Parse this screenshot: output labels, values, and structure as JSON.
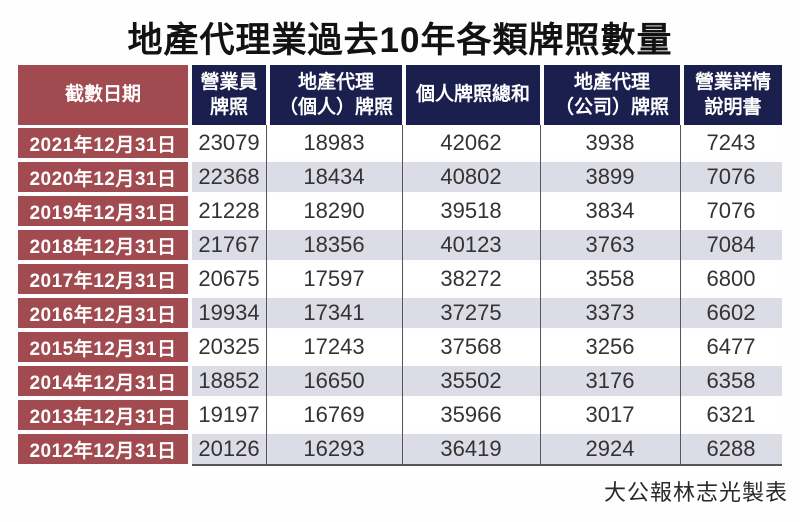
{
  "title": "地產代理業過去10年各類牌照數量",
  "credit": "大公報林志光製表",
  "colors": {
    "header_bg": "#1a1f4e",
    "date_column_bg": "#a14b50",
    "alt_row_bg": "#dcdce7",
    "grid_line": "#55555a",
    "number_text": "#333333",
    "header_text": "#ffffff"
  },
  "table": {
    "headers": [
      {
        "line1": "截數日期",
        "line2": ""
      },
      {
        "line1": "營業員",
        "line2": "牌照"
      },
      {
        "line1": "地產代理",
        "line2": "（個人）牌照"
      },
      {
        "line1": "個人牌照總和",
        "line2": ""
      },
      {
        "line1": "地產代理",
        "line2": "（公司）牌照"
      },
      {
        "line1": "營業詳情",
        "line2": "說明書"
      }
    ]
  },
  "chart_data": {
    "type": "table",
    "title": "地產代理業過去10年各類牌照數量",
    "columns": [
      "截數日期",
      "營業員牌照",
      "地產代理（個人）牌照",
      "個人牌照總和",
      "地產代理（公司）牌照",
      "營業詳情說明書"
    ],
    "rows": [
      {
        "date": "2021年12月31日",
        "values": [
          23079,
          18983,
          42062,
          3938,
          7243
        ]
      },
      {
        "date": "2020年12月31日",
        "values": [
          22368,
          18434,
          40802,
          3899,
          7076
        ]
      },
      {
        "date": "2019年12月31日",
        "values": [
          21228,
          18290,
          39518,
          3834,
          7076
        ]
      },
      {
        "date": "2018年12月31日",
        "values": [
          21767,
          18356,
          40123,
          3763,
          7084
        ]
      },
      {
        "date": "2017年12月31日",
        "values": [
          20675,
          17597,
          38272,
          3558,
          6800
        ]
      },
      {
        "date": "2016年12月31日",
        "values": [
          19934,
          17341,
          37275,
          3373,
          6602
        ]
      },
      {
        "date": "2015年12月31日",
        "values": [
          20325,
          17243,
          37568,
          3256,
          6477
        ]
      },
      {
        "date": "2014年12月31日",
        "values": [
          18852,
          16650,
          35502,
          3176,
          6358
        ]
      },
      {
        "date": "2013年12月31日",
        "values": [
          19197,
          16769,
          35966,
          3017,
          6321
        ]
      },
      {
        "date": "2012年12月31日",
        "values": [
          20126,
          16293,
          36419,
          2924,
          6288
        ]
      }
    ]
  }
}
